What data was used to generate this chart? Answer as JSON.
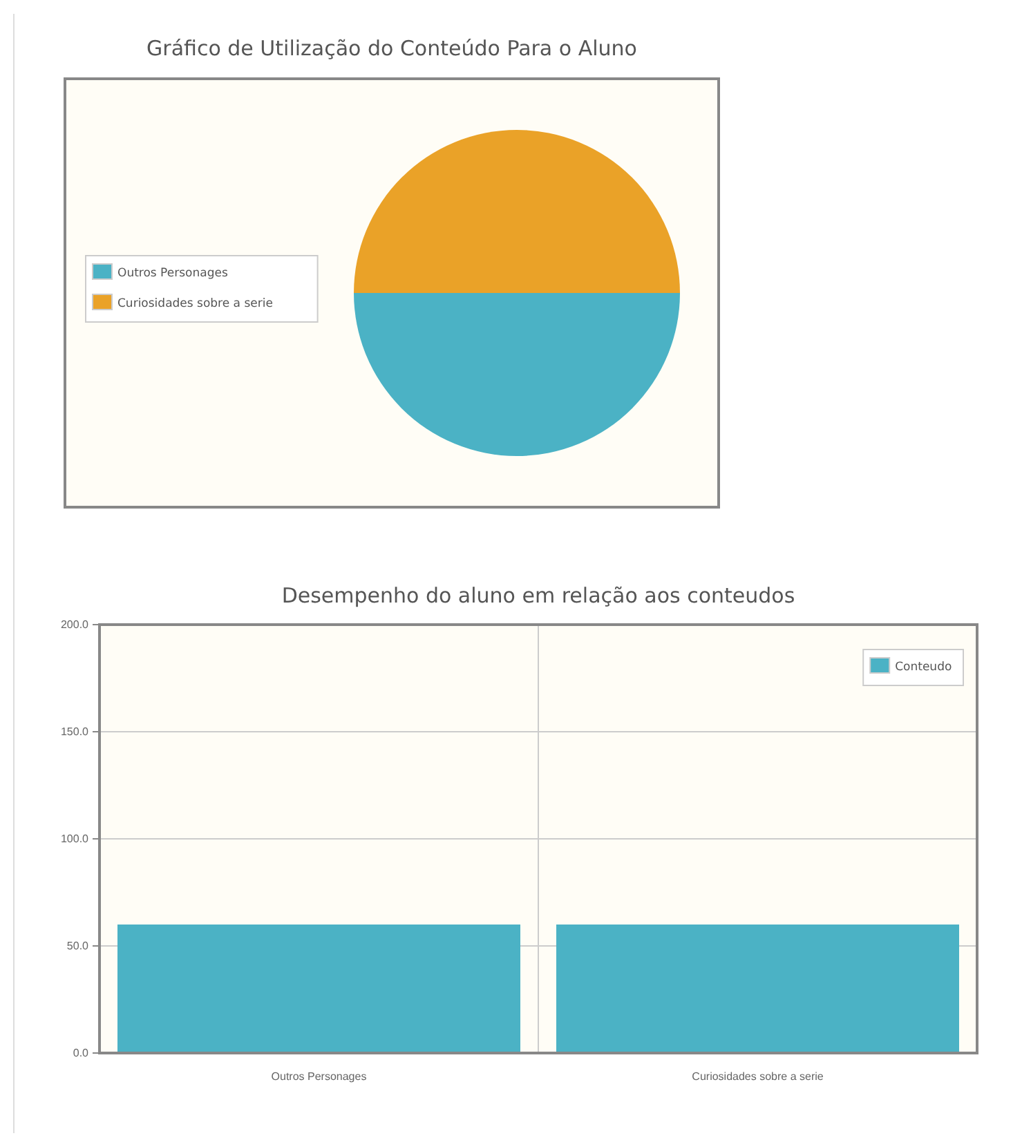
{
  "chart_data": [
    {
      "type": "pie",
      "title": "Gráfico de Utilização do Conteúdo Para o Aluno",
      "categories": [
        "Outros Personages",
        "Curiosidades sobre a serie"
      ],
      "values": [
        50,
        50
      ],
      "colors": [
        "#4bb2c5",
        "#eaa228"
      ],
      "legend": "left"
    },
    {
      "type": "bar",
      "title": "Desempenho do aluno em relação aos conteudos",
      "categories": [
        "Outros Personages",
        "Curiosidades sobre a serie"
      ],
      "series": [
        {
          "name": "Conteudo",
          "color": "#4bb2c5",
          "values": [
            60,
            60
          ]
        }
      ],
      "ylim": [
        0,
        200
      ],
      "yticks": [
        {
          "value": 0,
          "label": "0.0"
        },
        {
          "value": 50,
          "label": "50.0"
        },
        {
          "value": 100,
          "label": "100.0"
        },
        {
          "value": 150,
          "label": "150.0"
        },
        {
          "value": 200,
          "label": "200.0"
        }
      ],
      "grid": true,
      "legend": "top right"
    }
  ]
}
